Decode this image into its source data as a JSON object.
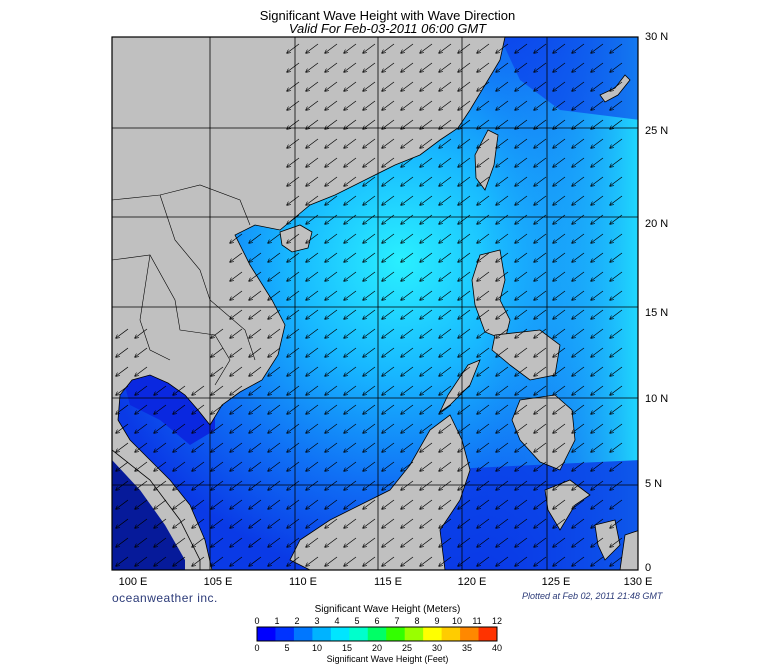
{
  "header": {
    "title": "Significant Wave Height with Wave Direction",
    "subtitle": "Valid For Feb-03-2011 06:00 GMT"
  },
  "axes": {
    "lat_labels": [
      "30 N",
      "25 N",
      "20 N",
      "15 N",
      "10 N",
      "5 N",
      "0"
    ],
    "lon_labels": [
      "100 E",
      "105 E",
      "110 E",
      "115 E",
      "120 E",
      "125 E",
      "130 E"
    ]
  },
  "footer": {
    "brand": "oceanweather inc.",
    "plotted": "Plotted at Feb 02, 2011 21:48 GMT"
  },
  "colorbar": {
    "meters_title": "Significant Wave Height (Meters)",
    "feet_title": "Significant Wave Height (Feet)",
    "meters_ticks": [
      "0",
      "1",
      "2",
      "3",
      "4",
      "5",
      "6",
      "7",
      "8",
      "9",
      "10",
      "11",
      "12"
    ],
    "feet_ticks": [
      "0",
      "5",
      "10",
      "15",
      "20",
      "25",
      "30",
      "35",
      "40"
    ],
    "colors": [
      "#0000ff",
      "#0033ff",
      "#0077ff",
      "#00b3ff",
      "#00e5ff",
      "#00ffcc",
      "#00ff66",
      "#33ff00",
      "#99ff00",
      "#ffff00",
      "#ffcc00",
      "#ff8800",
      "#ff3300"
    ]
  },
  "map": {
    "land_color": "#c0c0c0",
    "ocean_dark": "#0a28e0",
    "ocean_mid": "#1a6cf5",
    "ocean_light": "#1fd0ff",
    "wave_direction": "southwest"
  }
}
